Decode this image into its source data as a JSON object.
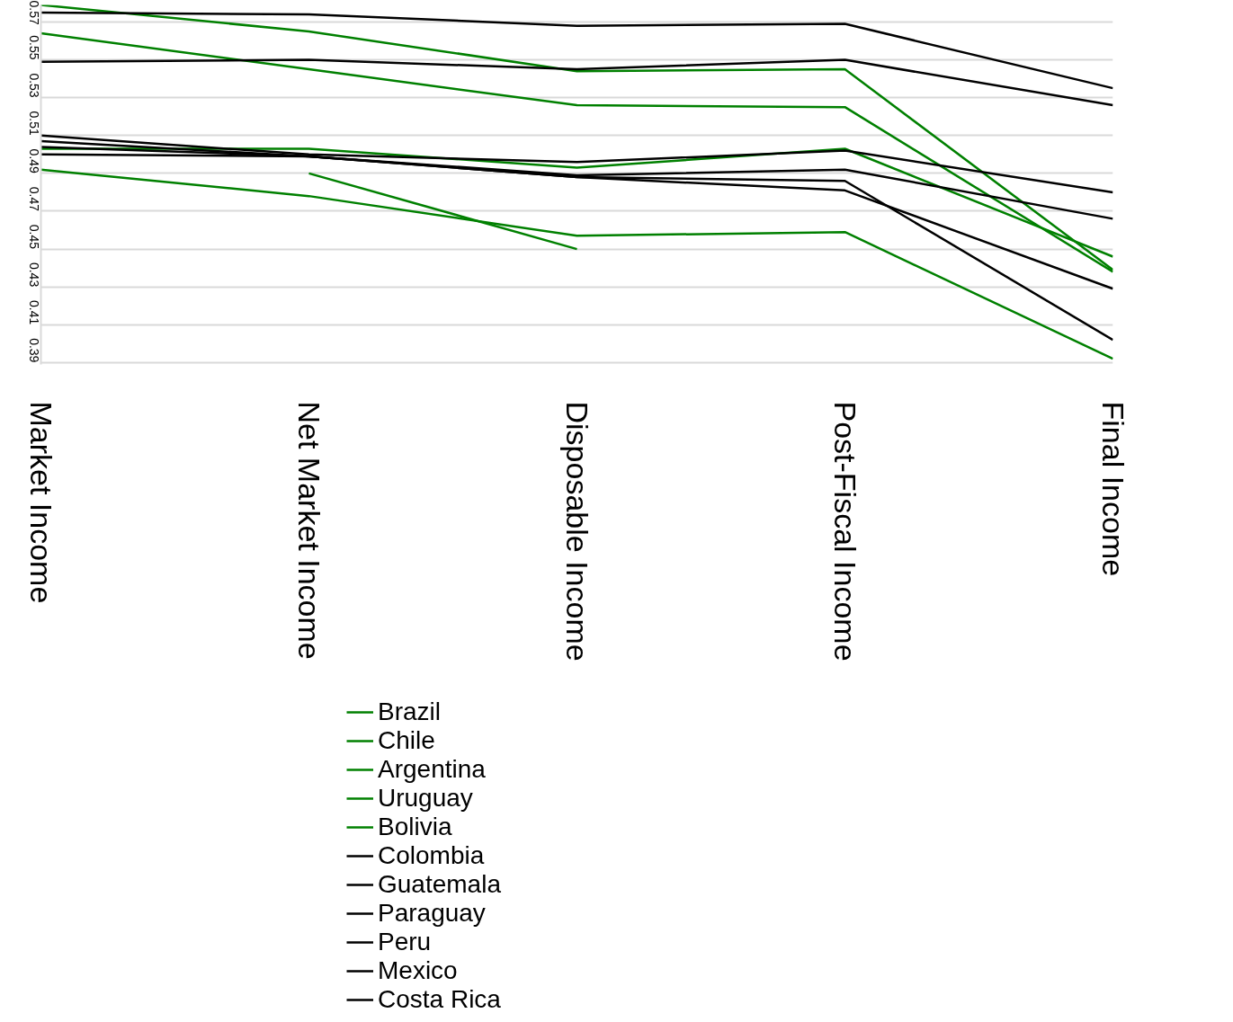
{
  "chart_data": {
    "type": "line",
    "categories": [
      "Market Income",
      "Net Market Income",
      "Disposable Income",
      "Post-Fiscal Income",
      "Final Income"
    ],
    "ylim": [
      0.389,
      0.579
    ],
    "yticks": [
      0.39,
      0.41,
      0.43,
      0.45,
      0.47,
      0.49,
      0.51,
      0.53,
      0.55,
      0.57
    ],
    "grid": "y",
    "legend": "bottom",
    "marker": "none",
    "line_style": "solid",
    "series": [
      {
        "name": "Brazil",
        "color": "#008000",
        "values": [
          0.579,
          0.565,
          0.544,
          0.545,
          0.439
        ]
      },
      {
        "name": "Chile",
        "color": "#008000",
        "values": [
          0.564,
          0.545,
          0.526,
          0.525,
          0.438
        ]
      },
      {
        "name": "Argentina",
        "color": "#008000",
        "values": [
          0.503,
          0.503,
          0.493,
          0.503,
          0.446
        ]
      },
      {
        "name": "Uruguay",
        "color": "#008000",
        "values": [
          0.492,
          0.478,
          0.457,
          0.459,
          0.392
        ]
      },
      {
        "name": "Bolivia",
        "color": "#008000",
        "values": [
          null,
          0.49,
          0.45,
          null,
          null
        ]
      },
      {
        "name": "Colombia",
        "color": "#000000",
        "values": [
          0.575,
          0.574,
          0.568,
          0.569,
          0.535
        ]
      },
      {
        "name": "Guatemala",
        "color": "#000000",
        "values": [
          0.549,
          0.55,
          0.545,
          0.55,
          0.526
        ]
      },
      {
        "name": "Paraguay",
        "color": "#000000",
        "values": [
          0.51,
          0.5,
          0.496,
          0.502,
          0.48
        ]
      },
      {
        "name": "Peru",
        "color": "#000000",
        "values": [
          0.507,
          0.499,
          0.489,
          0.492,
          0.466
        ]
      },
      {
        "name": "Mexico",
        "color": "#000000",
        "values": [
          0.504,
          0.499,
          0.488,
          0.486,
          0.402
        ]
      },
      {
        "name": "Costa Rica",
        "color": "#000000",
        "values": [
          0.5,
          0.499,
          0.488,
          0.481,
          0.429
        ]
      }
    ]
  }
}
